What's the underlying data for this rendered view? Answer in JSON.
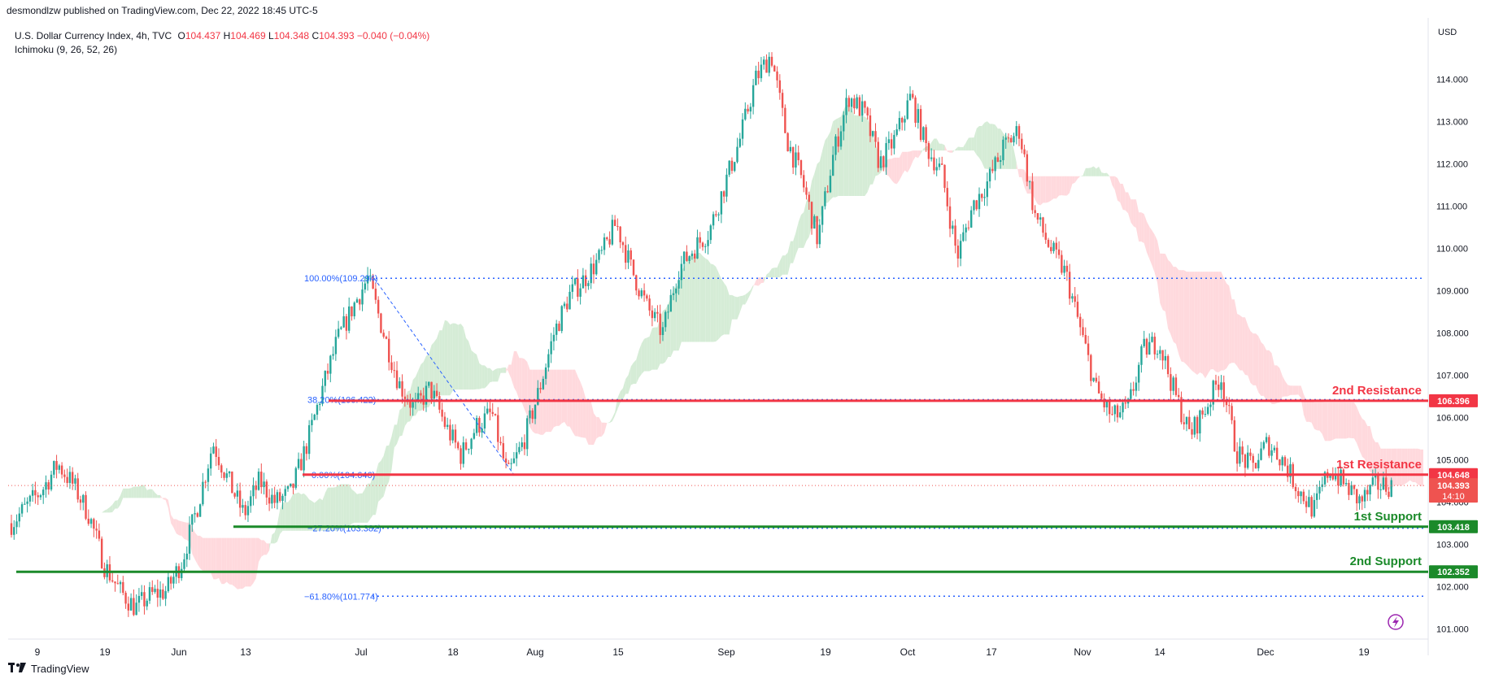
{
  "header": {
    "published": "desmondlzw published on TradingView.com, Dec 22, 2022 18:45 UTC-5"
  },
  "legend": {
    "symbol": "U.S. Dollar Currency Index, 4h, TVC",
    "o_label": "O",
    "o": "104.437",
    "h_label": "H",
    "h": "104.469",
    "l_label": "L",
    "l": "104.348",
    "c_label": "C",
    "c": "104.393",
    "change": "−0.040 (−0.04%)",
    "indicator": "Ichimoku (9, 26, 52, 26)"
  },
  "axis": {
    "currency": "USD"
  },
  "footer": {
    "brand": "TradingView",
    "logo_icon": "tradingview-logo-icon"
  },
  "colors": {
    "up": "#26a69a",
    "down": "#ef5350",
    "resistance": "#f23645",
    "support": "#1b8a2a",
    "fib": "#2962ff",
    "cloud_bull": "#c8e6c9",
    "cloud_bear": "#ffcdd2"
  },
  "chart_data": {
    "type": "candlestick",
    "ylim": [
      100.8,
      115.2
    ],
    "yticks": [
      "101.000",
      "102.000",
      "103.000",
      "104.000",
      "105.000",
      "106.000",
      "107.000",
      "108.000",
      "109.000",
      "110.000",
      "111.000",
      "112.000",
      "113.000",
      "114.000"
    ],
    "xticks": [
      "9",
      "19",
      "Jun",
      "13",
      "Jul",
      "18",
      "Aug",
      "15",
      "Sep",
      "19",
      "Oct",
      "17",
      "Nov",
      "14",
      "Dec",
      "19"
    ],
    "price_path": [
      103.5,
      103.9,
      104.3,
      104.9,
      104.4,
      103.7,
      102.5,
      101.9,
      101.5,
      101.8,
      101.9,
      102.6,
      103.9,
      105.4,
      104.5,
      103.7,
      104.5,
      104.0,
      104.2,
      105.3,
      106.6,
      107.8,
      108.6,
      109.3,
      108.0,
      106.8,
      106.2,
      106.7,
      105.8,
      105.1,
      105.8,
      106.1,
      104.6,
      105.4,
      106.6,
      108.0,
      108.9,
      109.3,
      109.8,
      110.6,
      109.5,
      108.6,
      108.0,
      109.5,
      110.0,
      110.4,
      111.5,
      112.6,
      114.0,
      114.6,
      112.6,
      111.6,
      110.2,
      112.2,
      113.6,
      113.2,
      112.0,
      112.6,
      113.6,
      112.4,
      111.8,
      109.8,
      111.0,
      111.6,
      112.4,
      112.8,
      110.8,
      110.0,
      109.4,
      108.0,
      106.6,
      106.0,
      106.2,
      107.6,
      107.8,
      106.6,
      105.6,
      106.2,
      107.0,
      105.2,
      104.8,
      105.4,
      105.0,
      104.3,
      103.8,
      104.8,
      104.4,
      104.0,
      104.4,
      104.4
    ],
    "horizontal_levels": [
      {
        "name": "2nd Resistance",
        "value": 106.396,
        "label": "106.396"
      },
      {
        "name": "1st Resistance",
        "value": 104.648,
        "label": "104.648"
      },
      {
        "name": "1st Support",
        "value": 103.418,
        "label": "103.418"
      },
      {
        "name": "2nd Support",
        "value": 102.352,
        "label": "102.352"
      }
    ],
    "fib_levels": [
      {
        "label": "100.00%(109.294)",
        "value": 109.294
      },
      {
        "label": "38.20%(106.422)",
        "value": 106.422
      },
      {
        "label": "0.00%(104.646)",
        "value": 104.646
      },
      {
        "label": "−27.20%(103.382)",
        "value": 103.382
      },
      {
        "label": "−61.80%(101.774)",
        "value": 101.774
      }
    ],
    "last_price": {
      "value": 104.393,
      "label": "104.393",
      "countdown": "14:10"
    }
  }
}
